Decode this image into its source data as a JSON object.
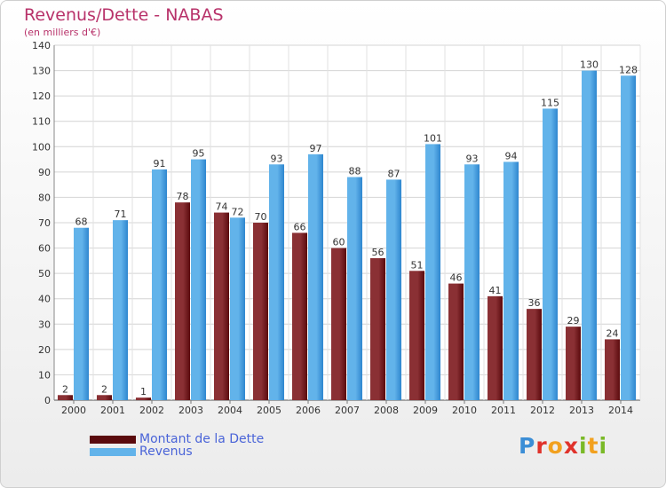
{
  "colors": {
    "title": "#b8326a",
    "legend_text": "#4a64d8",
    "dette_dark": "#5a0a0d",
    "dette_light": "#8a3034",
    "revenus_dark": "#2e86cf",
    "revenus_light": "#62b3ea"
  },
  "logo": {
    "text": "Proxiti"
  },
  "chart_data": {
    "type": "bar",
    "title": "Revenus/Dette - NABAS",
    "subtitle": "(en milliers d'€)",
    "xlabel": "",
    "ylabel": "",
    "ylim": [
      0,
      140
    ],
    "yticks": [
      "0",
      "10",
      "20",
      "30",
      "40",
      "50",
      "60",
      "70",
      "80",
      "90",
      "100",
      "110",
      "120",
      "130",
      "140"
    ],
    "grid": true,
    "legend_position": "bottom-left",
    "categories": [
      "2000",
      "2001",
      "2002",
      "2003",
      "2004",
      "2005",
      "2006",
      "2007",
      "2008",
      "2009",
      "2010",
      "2011",
      "2012",
      "2013",
      "2014"
    ],
    "series": [
      {
        "name": "Montant de la Dette",
        "values": [
          2,
          2,
          1,
          78,
          74,
          70,
          66,
          60,
          56,
          51,
          46,
          41,
          36,
          29,
          24
        ]
      },
      {
        "name": "Revenus",
        "values": [
          68,
          71,
          91,
          95,
          72,
          93,
          97,
          88,
          87,
          101,
          93,
          94,
          115,
          130,
          128
        ]
      }
    ]
  }
}
